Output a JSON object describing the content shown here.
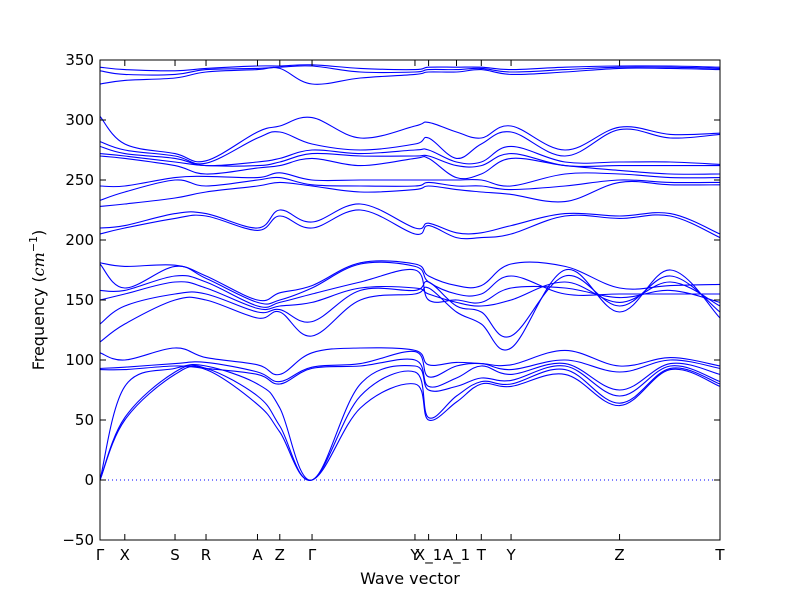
{
  "chart_data": {
    "type": "line",
    "title": "",
    "xlabel": "Wave vector",
    "ylabel_text": "Frequency (",
    "ylabel_unit_base": "cm",
    "ylabel_unit_exp": "−1",
    "ylabel_close": ")",
    "ylim": [
      -50,
      350
    ],
    "yticks": [
      -50,
      0,
      50,
      100,
      150,
      200,
      250,
      300,
      350
    ],
    "x_range": [
      0,
      1
    ],
    "high_symbol_points": [
      {
        "label": "Γ",
        "x": 0.0
      },
      {
        "label": "X",
        "x": 0.04
      },
      {
        "label": "S",
        "x": 0.121
      },
      {
        "label": "R",
        "x": 0.171
      },
      {
        "label": "A",
        "x": 0.254
      },
      {
        "label": "Z",
        "x": 0.29
      },
      {
        "label": "Γ",
        "x": 0.342
      },
      {
        "label": "Y",
        "x": 0.508
      },
      {
        "label": "X_1",
        "x": 0.53
      },
      {
        "label": "A_1",
        "x": 0.575
      },
      {
        "label": "T",
        "x": 0.615
      },
      {
        "label": "Y",
        "x": 0.663
      },
      {
        "label": "Z",
        "x": 0.838
      },
      {
        "label": "T",
        "x": 1.0
      }
    ],
    "grid": false,
    "legend": "none",
    "zero_line": {
      "y": 0,
      "style": "dotted"
    },
    "series_color": "#0000ff",
    "x": [
      0,
      0.04,
      0.121,
      0.171,
      0.254,
      0.29,
      0.342,
      0.42,
      0.508,
      0.53,
      0.575,
      0.615,
      0.663,
      0.75,
      0.838,
      0.92,
      1.0
    ],
    "series": [
      {
        "values": [
          0,
          50,
          88,
          92,
          63,
          40,
          0,
          60,
          80,
          50,
          65,
          80,
          78,
          88,
          62,
          92,
          78
        ]
      },
      {
        "values": [
          0,
          52,
          90,
          93,
          70,
          45,
          0,
          70,
          90,
          52,
          70,
          82,
          80,
          92,
          64,
          93,
          80
        ]
      },
      {
        "values": [
          0,
          78,
          93,
          95,
          80,
          60,
          0,
          80,
          95,
          75,
          78,
          85,
          83,
          95,
          70,
          95,
          82
        ]
      },
      {
        "values": [
          92,
          92,
          95,
          93,
          88,
          80,
          93,
          95,
          100,
          78,
          85,
          95,
          88,
          97,
          75,
          97,
          88
        ]
      },
      {
        "values": [
          93,
          94,
          97,
          98,
          90,
          82,
          94,
          97,
          107,
          86,
          95,
          97,
          92,
          100,
          90,
          100,
          93
        ]
      },
      {
        "values": [
          106,
          100,
          110,
          102,
          96,
          88,
          106,
          110,
          108,
          96,
          98,
          97,
          96,
          108,
          95,
          102,
          95
        ]
      },
      {
        "values": [
          115,
          130,
          150,
          150,
          135,
          140,
          120,
          150,
          155,
          160,
          140,
          130,
          110,
          175,
          140,
          175,
          135
        ]
      },
      {
        "values": [
          130,
          145,
          155,
          155,
          140,
          142,
          132,
          158,
          158,
          165,
          145,
          140,
          120,
          170,
          145,
          170,
          140
        ]
      },
      {
        "values": [
          150,
          155,
          165,
          160,
          143,
          145,
          148,
          160,
          160,
          155,
          148,
          145,
          150,
          165,
          148,
          165,
          145
        ]
      },
      {
        "values": [
          158,
          158,
          170,
          165,
          145,
          148,
          155,
          165,
          175,
          150,
          150,
          148,
          160,
          160,
          152,
          158,
          148
        ]
      },
      {
        "values": [
          180,
          160,
          178,
          168,
          148,
          150,
          160,
          180,
          178,
          165,
          155,
          155,
          170,
          155,
          155,
          155,
          155
        ]
      },
      {
        "values": [
          181,
          178,
          179,
          170,
          150,
          156,
          162,
          181,
          180,
          170,
          162,
          162,
          180,
          178,
          160,
          162,
          163
        ]
      },
      {
        "values": [
          205,
          210,
          218,
          220,
          208,
          220,
          210,
          225,
          205,
          212,
          202,
          202,
          205,
          220,
          218,
          220,
          202
        ]
      },
      {
        "values": [
          210,
          212,
          222,
          222,
          210,
          225,
          215,
          230,
          210,
          214,
          206,
          206,
          212,
          222,
          220,
          222,
          205
        ]
      },
      {
        "values": [
          228,
          230,
          235,
          240,
          245,
          248,
          245,
          240,
          242,
          245,
          242,
          240,
          238,
          232,
          248,
          246,
          246
        ]
      },
      {
        "values": [
          233,
          240,
          250,
          245,
          250,
          252,
          246,
          245,
          245,
          248,
          245,
          245,
          242,
          245,
          250,
          248,
          248
        ]
      },
      {
        "values": [
          245,
          245,
          252,
          253,
          252,
          256,
          250,
          250,
          250,
          250,
          250,
          250,
          245,
          255,
          255,
          252,
          252
        ]
      },
      {
        "values": [
          270,
          268,
          262,
          255,
          260,
          262,
          268,
          262,
          268,
          268,
          252,
          255,
          268,
          262,
          258,
          255,
          255
        ]
      },
      {
        "values": [
          272,
          270,
          265,
          262,
          262,
          265,
          272,
          270,
          270,
          270,
          262,
          262,
          272,
          262,
          262,
          262,
          262
        ]
      },
      {
        "values": [
          278,
          272,
          268,
          262,
          265,
          268,
          275,
          272,
          275,
          275,
          265,
          265,
          278,
          265,
          265,
          265,
          263
        ]
      },
      {
        "values": [
          282,
          275,
          270,
          264,
          285,
          290,
          280,
          275,
          280,
          285,
          268,
          280,
          290,
          270,
          292,
          285,
          288
        ]
      },
      {
        "values": [
          303,
          280,
          272,
          266,
          290,
          295,
          302,
          285,
          295,
          298,
          290,
          285,
          295,
          275,
          294,
          288,
          289
        ]
      },
      {
        "values": [
          330,
          333,
          335,
          340,
          342,
          343,
          330,
          335,
          338,
          340,
          340,
          342,
          338,
          340,
          343,
          343,
          342
        ]
      },
      {
        "values": [
          341,
          338,
          338,
          342,
          343,
          344,
          345,
          340,
          340,
          342,
          342,
          343,
          340,
          342,
          344,
          344,
          343
        ]
      },
      {
        "values": [
          344,
          342,
          341,
          343,
          345,
          345,
          346,
          343,
          342,
          344,
          344,
          344,
          342,
          344,
          345,
          345,
          344
        ]
      }
    ]
  }
}
